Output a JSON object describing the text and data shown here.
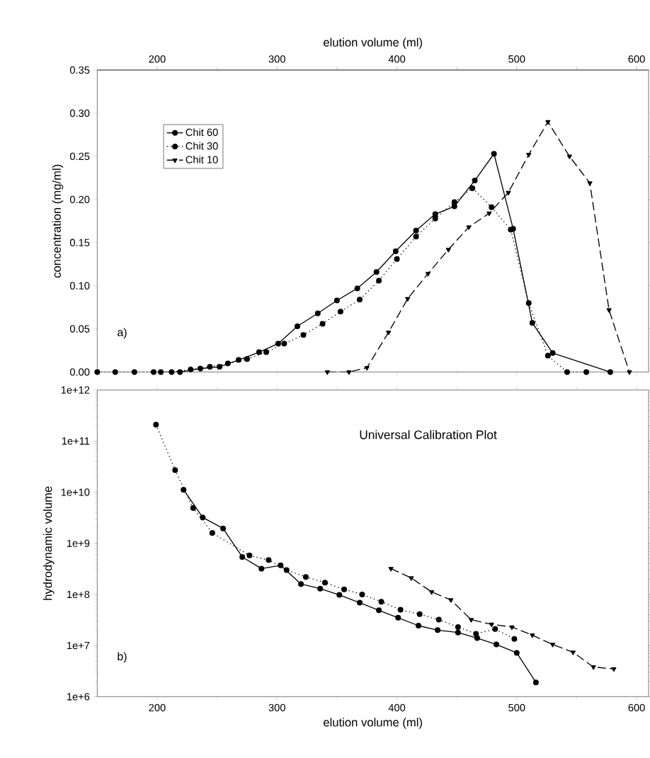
{
  "chart_data": [
    {
      "type": "line",
      "xlim": [
        150,
        610
      ],
      "xticks": [
        200,
        300,
        400,
        500,
        600
      ],
      "tick_labels": "y",
      "x2lim": [
        150,
        610
      ],
      "x2ticks": [
        200,
        300,
        400,
        500,
        600
      ],
      "x2label": "elution volume (ml)",
      "ylabel": "concentration (mg/ml)",
      "ylim": [
        0,
        0.35
      ],
      "yticks": [
        {
          "value": 0,
          "label": "0.00"
        },
        {
          "value": 0.05,
          "label": "0.05"
        },
        {
          "value": 0.1,
          "label": "0.10"
        },
        {
          "value": 0.15,
          "label": "0.15"
        },
        {
          "value": 0.2,
          "label": "0.20"
        },
        {
          "value": 0.25,
          "label": "0.25"
        },
        {
          "value": 0.3,
          "label": "0.30"
        },
        {
          "value": 0.35,
          "label": "0.35"
        }
      ],
      "legend": "top left",
      "annotations": [
        "a)"
      ],
      "series": [
        {
          "name": "Chit 60",
          "color": "#000000",
          "marker": "circle",
          "line_style": "solid",
          "x": [
            203,
            219,
            236,
            252,
            268,
            285,
            301,
            317,
            334,
            350,
            367,
            383,
            399,
            416,
            432,
            448,
            465,
            481,
            497,
            513,
            530,
            578
          ],
          "values": [
            0,
            0,
            0.004,
            0.006,
            0.014,
            0.023,
            0.033,
            0.053,
            0.068,
            0.083,
            0.097,
            0.116,
            0.14,
            0.164,
            0.183,
            0.192,
            0.222,
            0.253,
            0.166,
            0.057,
            0.022,
            0
          ]
        },
        {
          "name": "Chit 30",
          "color": "#000000",
          "marker": "circle",
          "line_style": "dotted",
          "x": [
            150,
            165,
            181,
            197,
            212,
            228,
            244,
            259,
            275,
            291,
            306,
            322,
            338,
            353,
            369,
            385,
            400,
            416,
            432,
            448,
            463,
            479,
            495,
            510,
            526,
            542,
            558
          ],
          "values": [
            0,
            0,
            0,
            0,
            0,
            0.003,
            0.006,
            0.01,
            0.015,
            0.023,
            0.033,
            0.043,
            0.056,
            0.07,
            0.084,
            0.106,
            0.131,
            0.157,
            0.178,
            0.197,
            0.213,
            0.191,
            0.165,
            0.08,
            0.019,
            0,
            0
          ]
        },
        {
          "name": "Chit 10",
          "color": "#000000",
          "marker": "triangle",
          "line_style": "dashed",
          "x": [
            342,
            360,
            375,
            393,
            409,
            426,
            443,
            460,
            477,
            493,
            510,
            526,
            544,
            561,
            577,
            594
          ],
          "values": [
            0,
            0,
            0.005,
            0.046,
            0.085,
            0.114,
            0.142,
            0.168,
            0.184,
            0.208,
            0.252,
            0.29,
            0.25,
            0.219,
            0.072,
            0
          ]
        }
      ]
    },
    {
      "type": "line",
      "title": "Universal Calibration Plot",
      "xlabel": "elution volume (ml)",
      "ylabel": "hydrodynamic volume",
      "xlim": [
        150,
        610
      ],
      "xticks": [
        200,
        300,
        400,
        500,
        600
      ],
      "log": "y",
      "ylim": [
        1000000.0,
        1000000000000.0
      ],
      "yticks": [
        {
          "value": 1000000.0,
          "label": "1e+6"
        },
        {
          "value": 10000000.0,
          "label": "1e+7"
        },
        {
          "value": 100000000.0,
          "label": "1e+8"
        },
        {
          "value": 1000000000.0,
          "label": "1e+9"
        },
        {
          "value": 10000000000.0,
          "label": "1e+10"
        },
        {
          "value": 100000000000.0,
          "label": "1e+11"
        },
        {
          "value": 1000000000000.0,
          "label": "1e+12"
        }
      ],
      "annotations": [
        "b)"
      ],
      "series": [
        {
          "color": "#000000",
          "marker": "circle",
          "line_style": "solid",
          "x": [
            222,
            238,
            255,
            271,
            287,
            303,
            320,
            336,
            352,
            369,
            385,
            401,
            418,
            434,
            451,
            467,
            483,
            500,
            516
          ],
          "values": [
            11200000000.0,
            3200000000.0,
            1950000000.0,
            540000000.0,
            320000000.0,
            370000000.0,
            160000000.0,
            130000000.0,
            98000000.0,
            69000000.0,
            49000000.0,
            35000000.0,
            24500000.0,
            20000000.0,
            18000000.0,
            14000000.0,
            10500000.0,
            7200000.0,
            1900000.0
          ]
        },
        {
          "color": "#000000",
          "marker": "circle",
          "line_style": "dotted",
          "x": [
            199,
            215,
            230,
            246,
            277,
            293,
            308,
            324,
            340,
            356,
            371,
            387,
            403,
            419,
            435,
            451,
            466,
            482,
            498
          ],
          "values": [
            210000000000.0,
            27000000000.0,
            4900000000.0,
            1600000000.0,
            580000000.0,
            470000000.0,
            300000000.0,
            220000000.0,
            170000000.0,
            126000000.0,
            100000000.0,
            72000000.0,
            50000000.0,
            41000000.0,
            32000000.0,
            23000000.0,
            17000000.0,
            21000000.0,
            13500000.0
          ]
        },
        {
          "color": "#000000",
          "marker": "triangle",
          "line_style": "dashed",
          "x": [
            395,
            412,
            429,
            445,
            462,
            479,
            496,
            513,
            530,
            547,
            564,
            581
          ],
          "values": [
            320000000.0,
            210000000.0,
            112000000.0,
            78000000.0,
            32000000.0,
            26000000.0,
            23000000.0,
            16000000.0,
            10500000.0,
            7400000.0,
            3800000.0,
            3500000.0
          ]
        }
      ]
    }
  ]
}
